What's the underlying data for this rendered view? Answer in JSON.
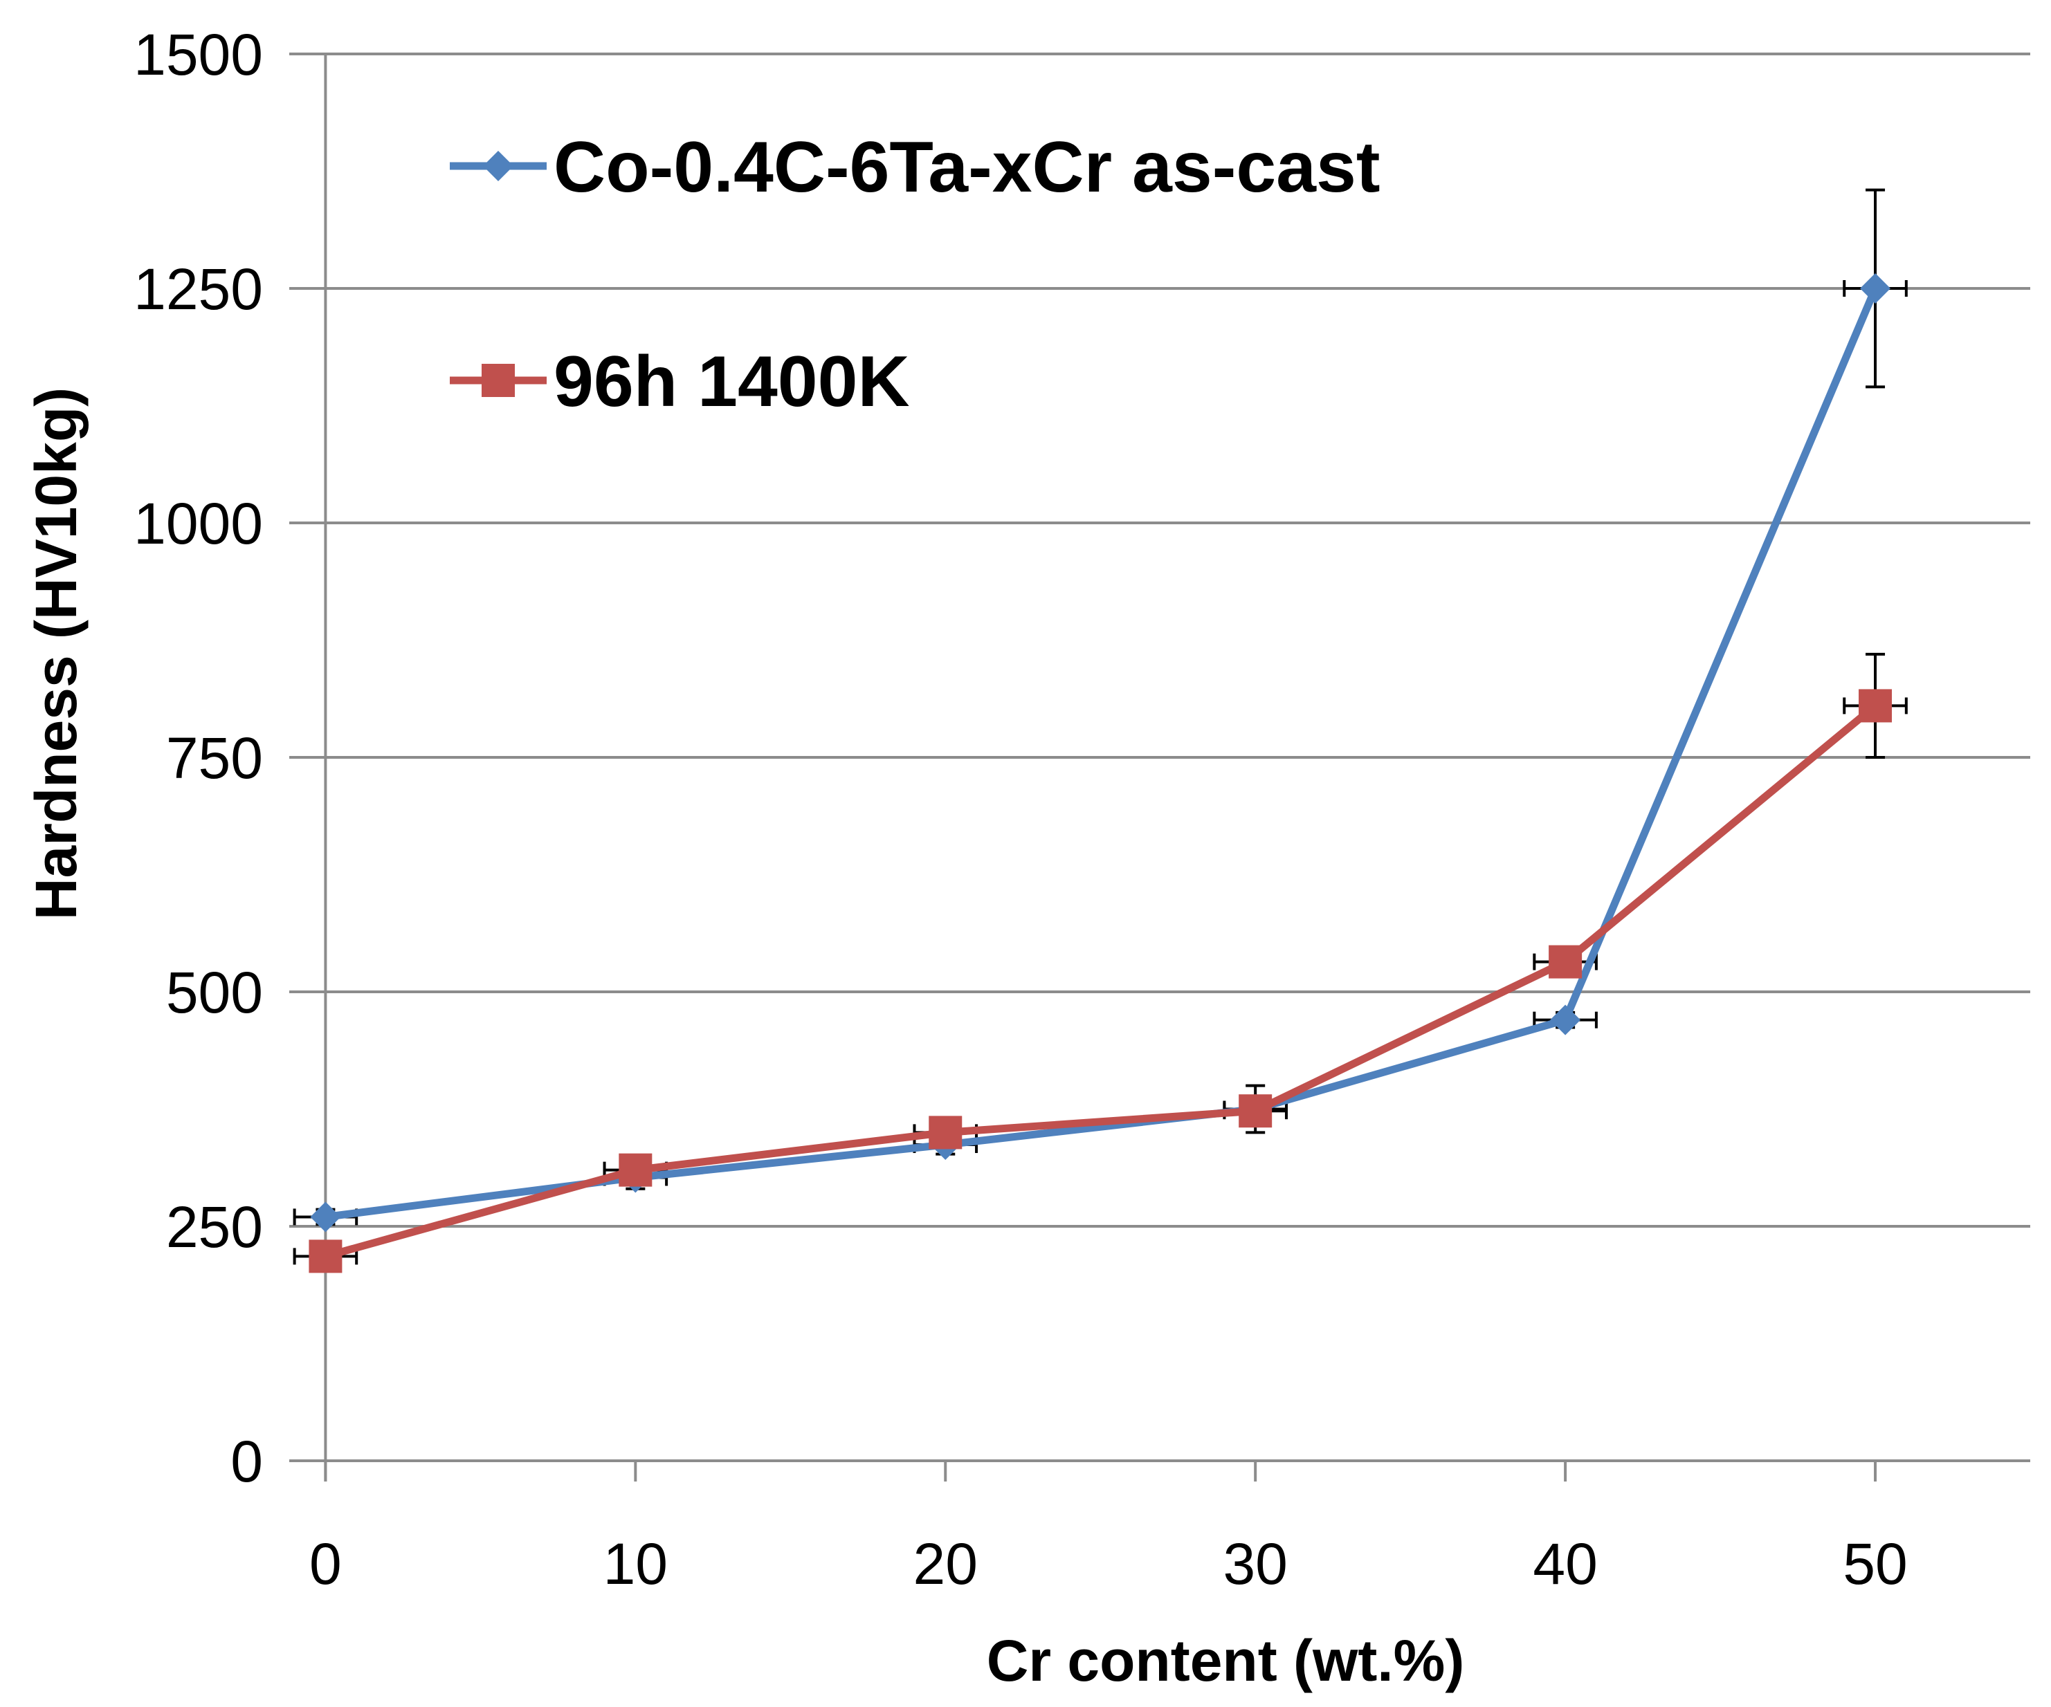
{
  "chart_data": {
    "type": "line",
    "title": "",
    "xlabel": "Cr content (wt.%)",
    "ylabel": "Hardness (HV10kg)",
    "xlim": [
      -0.5,
      55
    ],
    "ylim": [
      0,
      1500
    ],
    "x_ticks": [
      0,
      10,
      20,
      30,
      40,
      50
    ],
    "y_ticks": [
      0,
      250,
      500,
      750,
      1000,
      1250,
      1500
    ],
    "grid": true,
    "legend_position": "top-left",
    "series": [
      {
        "name": "Co-0.4C-6Ta-xCr as-cast",
        "color": "#4f81bd",
        "marker": "diamond",
        "x": [
          0,
          10,
          20,
          30,
          40,
          50
        ],
        "values": [
          260,
          302,
          337,
          375,
          470,
          1250
        ],
        "y_err": [
          8,
          12,
          10,
          25,
          8,
          105
        ],
        "x_err": [
          1,
          1,
          1,
          1,
          1,
          1
        ]
      },
      {
        "name": "96h 1400K",
        "color": "#c0504d",
        "marker": "square",
        "x": [
          0,
          10,
          20,
          30,
          40,
          50
        ],
        "values": [
          218,
          310,
          350,
          373,
          532,
          805
        ],
        "y_err": [
          10,
          8,
          12,
          15,
          8,
          55
        ],
        "x_err": [
          1,
          1,
          1,
          1,
          1,
          1
        ]
      }
    ]
  }
}
